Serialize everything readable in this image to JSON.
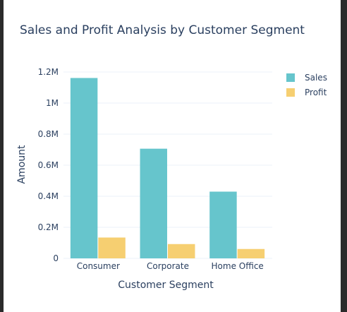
{
  "chart_data": {
    "type": "bar",
    "title": "Sales and Profit Analysis by Customer Segment",
    "xlabel": "Customer Segment",
    "ylabel": "Amount",
    "categories": [
      "Consumer",
      "Corporate",
      "Home Office"
    ],
    "series": [
      {
        "name": "Sales",
        "values": [
          1161401,
          706146,
          429653
        ],
        "color": "#66c5cc"
      },
      {
        "name": "Profit",
        "values": [
          134119,
          91979,
          60299
        ],
        "color": "#f6cf71"
      }
    ],
    "ylim": [
      0,
      1300000
    ],
    "yticks": [
      0,
      200000,
      400000,
      600000,
      800000,
      1000000,
      1200000
    ],
    "ytick_labels": [
      "0",
      "0.2M",
      "0.4M",
      "0.6M",
      "0.8M",
      "1M",
      "1.2M"
    ],
    "grid": true,
    "legend_position": "top-right"
  },
  "colors": {
    "gridline": "#ebf0f8",
    "text": "#2a3f5f",
    "background": "#ffffff"
  }
}
